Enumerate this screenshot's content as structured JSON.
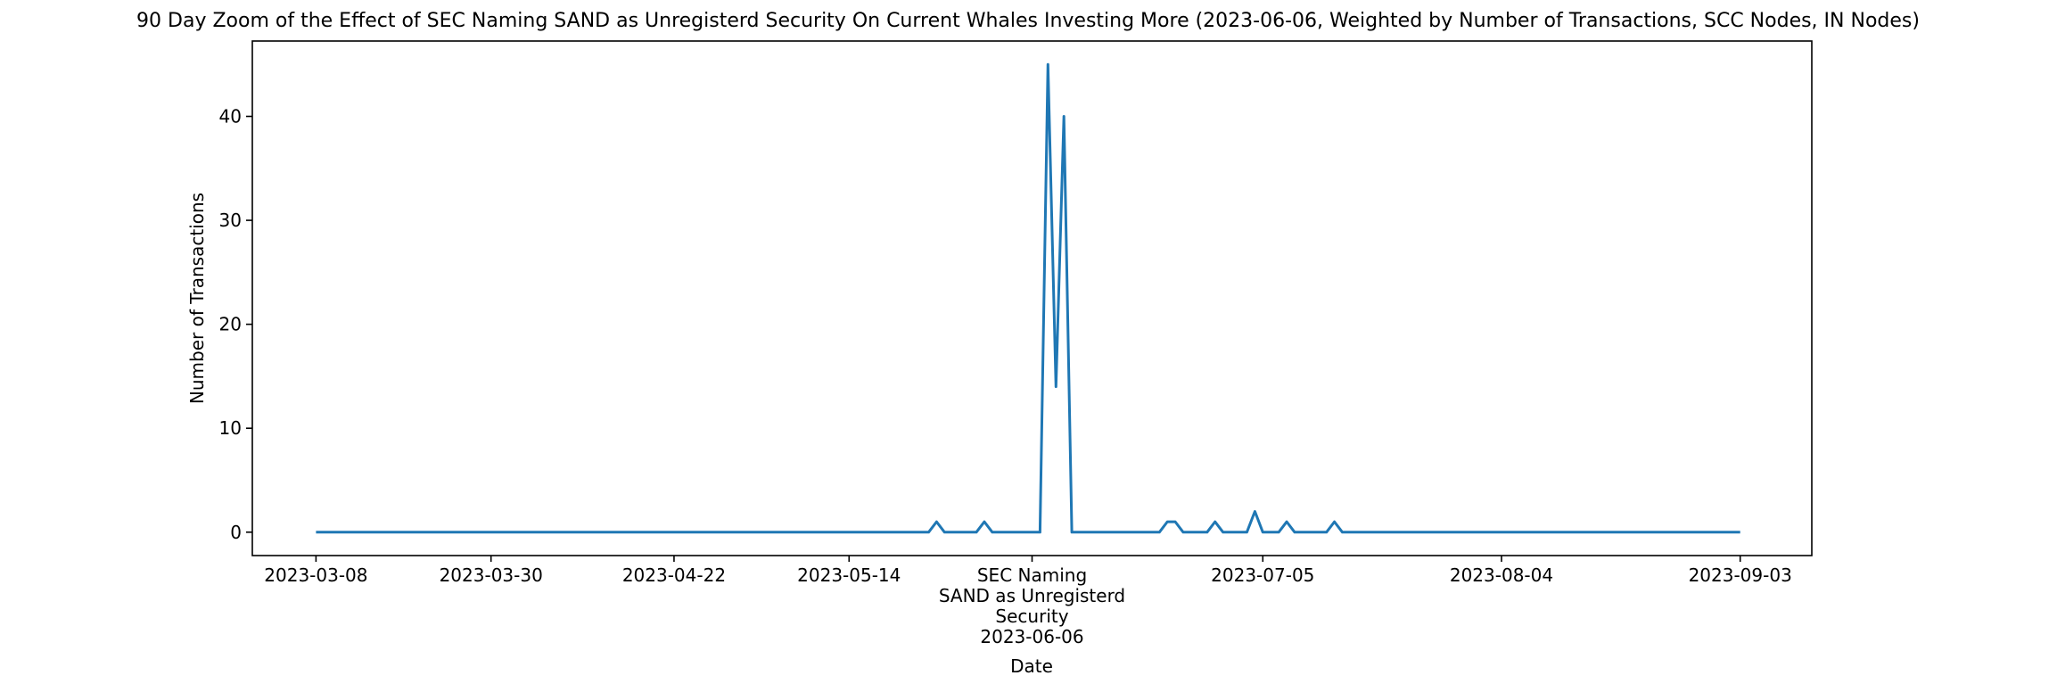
{
  "chart_data": {
    "type": "line",
    "title": "90 Day Zoom of the Effect of SEC Naming SAND as Unregisterd Security On Current Whales Investing More (2023-06-06, Weighted by Number of Transactions, SCC Nodes, IN Nodes)",
    "xlabel": "Date",
    "ylabel": "Number of Transactions",
    "ylim": [
      -2.25,
      47.25
    ],
    "xlim": [
      "2023-02-28",
      "2023-09-12"
    ],
    "yticks": [
      0,
      10,
      20,
      30,
      40
    ],
    "xticks": [
      {
        "date": "2023-03-08",
        "label": "2023-03-08"
      },
      {
        "date": "2023-03-30",
        "label": "2023-03-30"
      },
      {
        "date": "2023-04-22",
        "label": "2023-04-22"
      },
      {
        "date": "2023-05-14",
        "label": "2023-05-14"
      },
      {
        "date": "2023-06-06",
        "label": "SEC Naming\nSAND as Unregisterd\nSecurity\n2023-06-06"
      },
      {
        "date": "2023-07-05",
        "label": "2023-07-05"
      },
      {
        "date": "2023-08-04",
        "label": "2023-08-04"
      },
      {
        "date": "2023-09-03",
        "label": "2023-09-03"
      }
    ],
    "grid": false,
    "colors": {
      "series": "#1f77b4",
      "axes": "#000000",
      "background": "#ffffff"
    },
    "series": [
      {
        "x": [
          "2023-03-08",
          "2023-05-24",
          "2023-05-25",
          "2023-05-26",
          "2023-05-30",
          "2023-05-31",
          "2023-06-01",
          "2023-06-07",
          "2023-06-08",
          "2023-06-09",
          "2023-06-10",
          "2023-06-11",
          "2023-06-12",
          "2023-06-22",
          "2023-06-23",
          "2023-06-24",
          "2023-06-25",
          "2023-06-28",
          "2023-06-29",
          "2023-06-30",
          "2023-07-03",
          "2023-07-04",
          "2023-07-05",
          "2023-07-07",
          "2023-07-08",
          "2023-07-09",
          "2023-07-13",
          "2023-07-14",
          "2023-07-15",
          "2023-09-03"
        ],
        "values": [
          0,
          0,
          1,
          0,
          0,
          1,
          0,
          0,
          45,
          14,
          40,
          0,
          0,
          0,
          1,
          1,
          0,
          0,
          1,
          0,
          0,
          2,
          0,
          0,
          1,
          0,
          0,
          1,
          0,
          0
        ]
      }
    ]
  }
}
